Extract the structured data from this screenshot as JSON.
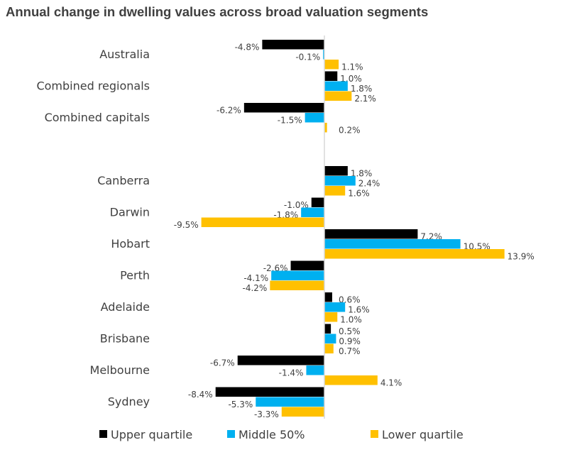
{
  "chart_data": {
    "type": "bar",
    "orientation": "horizontal",
    "title": "Annual change in dwelling values across broad valuation segments",
    "categories": [
      "Australia",
      "Combined regionals",
      "Combined capitals",
      "",
      "Canberra",
      "Darwin",
      "Hobart",
      "Perth",
      "Adelaide",
      "Brisbane",
      "Melbourne",
      "Sydney"
    ],
    "series": [
      {
        "name": "Upper quartile",
        "color": "#000000",
        "values": [
          -4.8,
          1.0,
          -6.2,
          null,
          1.8,
          -1.0,
          7.2,
          -2.6,
          0.6,
          0.5,
          -6.7,
          -8.4
        ]
      },
      {
        "name": "Middle 50%",
        "color": "#00B0F0",
        "values": [
          -0.1,
          1.8,
          -1.5,
          null,
          2.4,
          -1.8,
          10.5,
          -4.1,
          1.6,
          0.9,
          -1.4,
          -5.3
        ]
      },
      {
        "name": "Lower quartile",
        "color": "#FFC000",
        "values": [
          1.1,
          2.1,
          0.2,
          null,
          1.6,
          -9.5,
          13.9,
          -4.2,
          1.0,
          0.7,
          4.1,
          -3.3
        ]
      }
    ],
    "value_suffix": "%",
    "legend": "bottom",
    "grid": false
  }
}
